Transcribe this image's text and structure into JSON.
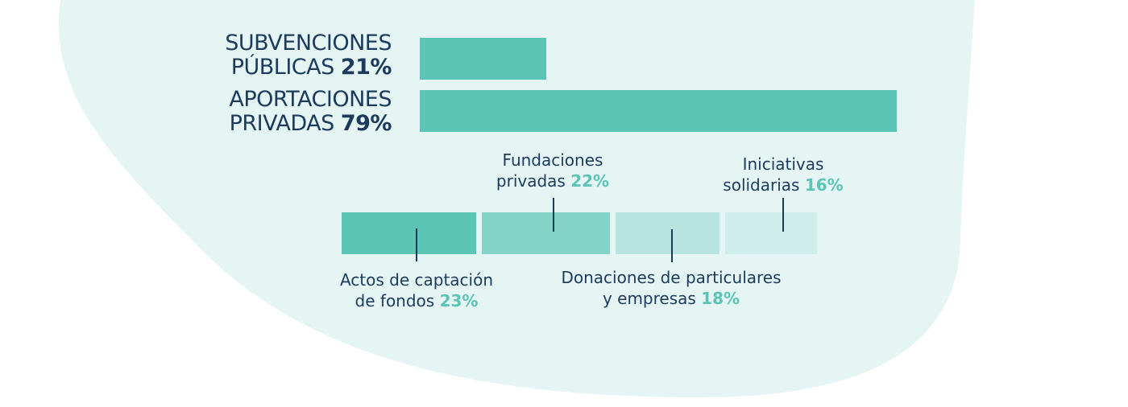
{
  "chart_data": {
    "type": "bar",
    "orientation": "horizontal",
    "categories": [
      {
        "line1": "SUBVENCIONES",
        "line2": "PÚBLICAS",
        "pct": "21%",
        "value": 21
      },
      {
        "line1": "APORTACIONES",
        "line2": "PRIVADAS",
        "pct": "79%",
        "value": 79
      }
    ],
    "breakdown": {
      "of": "APORTACIONES PRIVADAS",
      "segments": [
        {
          "line1": "Actos de captación",
          "line2": "de fondos",
          "pct": "23%",
          "value": 23,
          "color": "#5bc4b4",
          "label_position": "below"
        },
        {
          "line1": "Fundaciones",
          "line2": "privadas",
          "pct": "22%",
          "value": 22,
          "color": "#84d3c7",
          "label_position": "above"
        },
        {
          "line1": "Donaciones de particulares",
          "line2": "y empresas",
          "pct": "18%",
          "value": 18,
          "color": "#b7e4de",
          "label_position": "below"
        },
        {
          "line1": "Iniciativas",
          "line2": "solidarias",
          "pct": "16%",
          "value": 16,
          "color": "#d0eee9",
          "label_position": "above"
        }
      ]
    }
  },
  "colors": {
    "blob": "#e4f5f3",
    "bar": "#5bc4b4",
    "text": "#1c3a5e",
    "accent": "#5bc4b4"
  }
}
